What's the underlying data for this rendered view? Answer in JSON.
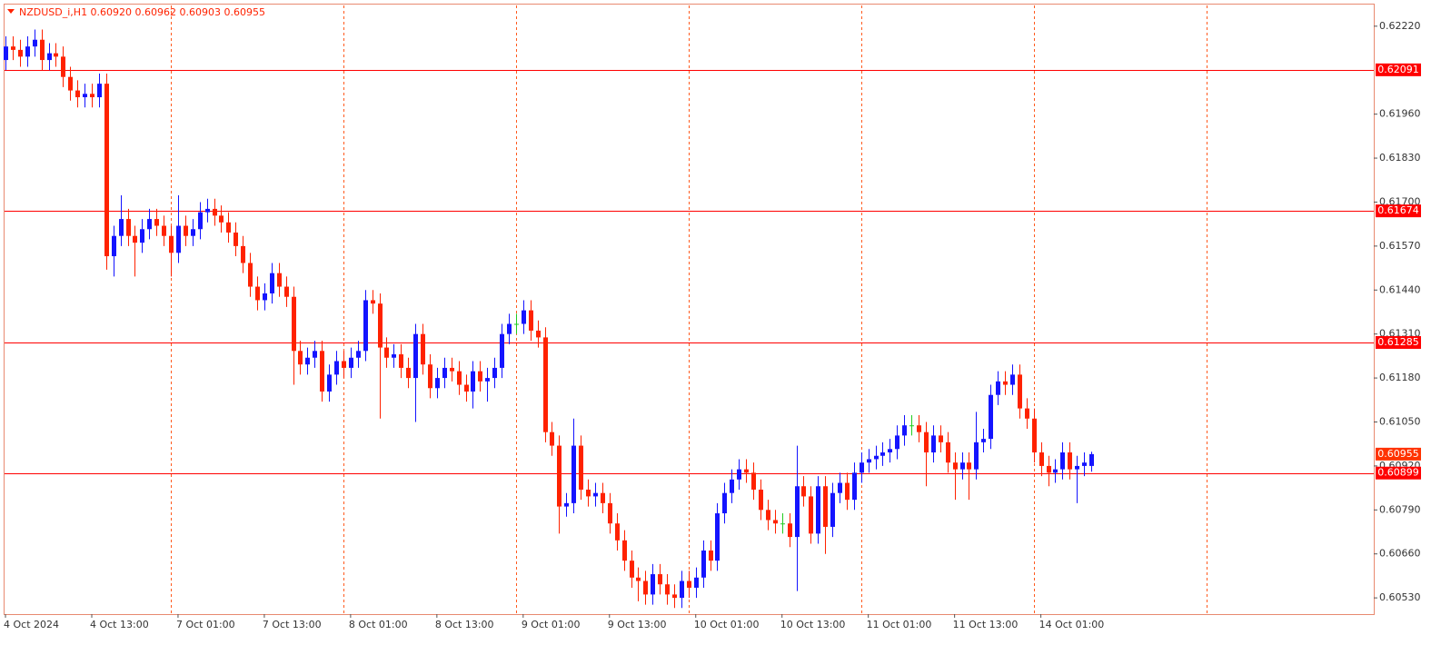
{
  "chart_data": {
    "type": "candlestick",
    "title": "NZDUSD_i,H1  0.60920 0.60962 0.60903 0.60955",
    "categories": [
      "4 Oct 2024",
      null,
      null,
      null,
      null,
      null,
      null,
      null,
      null,
      null,
      null,
      null,
      "4 Oct 13:00",
      null,
      null,
      null,
      null,
      null,
      null,
      null,
      null,
      null,
      null,
      null,
      "7 Oct 01:00",
      null,
      null,
      null,
      null,
      null,
      null,
      null,
      null,
      null,
      null,
      null,
      "7 Oct 13:00",
      null,
      null,
      null,
      null,
      null,
      null,
      null,
      null,
      null,
      null,
      null,
      "8 Oct 01:00",
      null,
      null,
      null,
      null,
      null,
      null,
      null,
      null,
      null,
      null,
      null,
      "8 Oct 13:00",
      null,
      null,
      null,
      null,
      null,
      null,
      null,
      null,
      null,
      null,
      null,
      "9 Oct 01:00",
      null,
      null,
      null,
      null,
      null,
      null,
      null,
      null,
      null,
      null,
      null,
      "9 Oct 13:00",
      null,
      null,
      null,
      null,
      null,
      null,
      null,
      null,
      null,
      null,
      null,
      "10 Oct 01:00",
      null,
      null,
      null,
      null,
      null,
      null,
      null,
      null,
      null,
      null,
      null,
      "10 Oct 13:00",
      null,
      null,
      null,
      null,
      null,
      null,
      null,
      null,
      null,
      null,
      null,
      "11 Oct 01:00",
      null,
      null,
      null,
      null,
      null,
      null,
      null,
      null,
      null,
      null,
      null,
      "11 Oct 13:00",
      null,
      null,
      null,
      null,
      null,
      null,
      null,
      null,
      null,
      null,
      null,
      "14 Oct 01:00",
      null,
      null,
      null,
      null,
      null,
      null,
      null
    ],
    "open": [
      0.6212,
      0.6216,
      0.6215,
      0.6213,
      0.6216,
      0.6218,
      0.6212,
      0.6214,
      0.6213,
      0.6207,
      0.6203,
      0.6201,
      0.6202,
      0.6201,
      0.6205,
      0.6154,
      0.616,
      0.6165,
      0.616,
      0.6158,
      0.6162,
      0.6165,
      0.6163,
      0.616,
      0.6155,
      0.6163,
      0.616,
      0.6162,
      0.6167,
      0.6168,
      0.6166,
      0.6164,
      0.6161,
      0.6157,
      0.6152,
      0.6145,
      0.6141,
      0.6143,
      0.6149,
      0.6145,
      0.6142,
      0.6126,
      0.6122,
      0.6124,
      0.6126,
      0.6114,
      0.6119,
      0.6123,
      0.6121,
      0.6124,
      0.6126,
      0.6141,
      0.614,
      0.6127,
      0.6124,
      0.6125,
      0.6121,
      0.6118,
      0.6131,
      0.6122,
      0.6115,
      0.6118,
      0.6121,
      0.612,
      0.6116,
      0.6114,
      0.612,
      0.6117,
      0.6118,
      0.6121,
      0.6131,
      0.6134,
      0.6134,
      0.6138,
      0.6132,
      0.613,
      0.6102,
      0.6098,
      0.608,
      0.6081,
      0.6098,
      0.6085,
      0.6083,
      0.6084,
      0.6081,
      0.6075,
      0.607,
      0.6064,
      0.6059,
      0.6058,
      0.6054,
      0.606,
      0.6057,
      0.6054,
      0.6053,
      0.6058,
      0.6056,
      0.6059,
      0.6067,
      0.6064,
      0.6078,
      0.6084,
      0.6088,
      0.6091,
      0.609,
      0.6085,
      0.6079,
      0.6076,
      0.6075,
      0.6075,
      0.6071,
      0.6086,
      0.6083,
      0.6072,
      0.6086,
      0.6074,
      0.6084,
      0.6087,
      0.6082,
      0.609,
      0.6093,
      0.6094,
      0.6095,
      0.6096,
      0.6097,
      0.6101,
      0.6104,
      0.6104,
      0.6102,
      0.6096,
      0.6101,
      0.6099,
      0.6093,
      0.6091,
      0.6093,
      0.6091,
      0.6099,
      0.61,
      0.6113,
      0.6117,
      0.6116,
      0.6119,
      0.6109,
      0.6106,
      0.6096,
      0.6092,
      0.609,
      0.6091,
      0.6096,
      0.6091,
      0.6092,
      0.6092
    ],
    "high": [
      0.6219,
      0.6219,
      0.6218,
      0.6219,
      0.6221,
      0.6221,
      0.6217,
      0.6217,
      0.6216,
      0.621,
      0.6206,
      0.6205,
      0.6205,
      0.6208,
      0.6208,
      0.6163,
      0.6172,
      0.6168,
      0.6163,
      0.6165,
      0.6168,
      0.6168,
      0.6166,
      0.6163,
      0.6172,
      0.6166,
      0.6165,
      0.617,
      0.6171,
      0.6171,
      0.6169,
      0.6167,
      0.6164,
      0.616,
      0.6155,
      0.6148,
      0.6146,
      0.6152,
      0.6152,
      0.6148,
      0.6145,
      0.6129,
      0.6127,
      0.6129,
      0.6129,
      0.6122,
      0.6126,
      0.6126,
      0.6127,
      0.6129,
      0.6144,
      0.6144,
      0.6143,
      0.613,
      0.6128,
      0.6128,
      0.6124,
      0.6134,
      0.6134,
      0.6125,
      0.6121,
      0.6124,
      0.6124,
      0.6123,
      0.6119,
      0.6123,
      0.6123,
      0.6121,
      0.6124,
      0.6134,
      0.6137,
      0.6137,
      0.6141,
      0.6141,
      0.6135,
      0.6133,
      0.6105,
      0.6101,
      0.6084,
      0.6106,
      0.6101,
      0.6088,
      0.6087,
      0.6087,
      0.6084,
      0.6078,
      0.6073,
      0.6067,
      0.6062,
      0.6061,
      0.6063,
      0.6063,
      0.606,
      0.6057,
      0.6061,
      0.6061,
      0.6062,
      0.607,
      0.607,
      0.6081,
      0.6087,
      0.6091,
      0.6094,
      0.6094,
      0.6093,
      0.6088,
      0.6082,
      0.6079,
      0.6078,
      0.6078,
      0.6098,
      0.6089,
      0.6086,
      0.6089,
      0.6089,
      0.6087,
      0.609,
      0.609,
      0.6093,
      0.6096,
      0.6097,
      0.6098,
      0.6099,
      0.61,
      0.6104,
      0.6107,
      0.6107,
      0.6107,
      0.6105,
      0.6104,
      0.6104,
      0.6102,
      0.6096,
      0.6096,
      0.6096,
      0.6108,
      0.6103,
      0.6116,
      0.612,
      0.612,
      0.6122,
      0.6122,
      0.6112,
      0.6109,
      0.6099,
      0.6095,
      0.6094,
      0.6099,
      0.6099,
      0.6095,
      0.6096,
      0.60962
    ],
    "low": [
      0.6209,
      0.6212,
      0.621,
      0.621,
      0.6213,
      0.6209,
      0.6209,
      0.621,
      0.6204,
      0.62,
      0.6198,
      0.6198,
      0.6198,
      0.6198,
      0.615,
      0.6148,
      0.6157,
      0.6157,
      0.6148,
      0.6155,
      0.6159,
      0.616,
      0.6157,
      0.6148,
      0.6152,
      0.6157,
      0.6157,
      0.6159,
      0.6164,
      0.6163,
      0.6161,
      0.6158,
      0.6154,
      0.6149,
      0.6142,
      0.6138,
      0.6138,
      0.614,
      0.6142,
      0.6139,
      0.6116,
      0.6119,
      0.6119,
      0.6121,
      0.6111,
      0.6111,
      0.6116,
      0.6118,
      0.6118,
      0.6121,
      0.6123,
      0.6137,
      0.6106,
      0.6121,
      0.6121,
      0.6118,
      0.6115,
      0.6105,
      0.6119,
      0.6112,
      0.6112,
      0.6115,
      0.6117,
      0.6113,
      0.6111,
      0.6109,
      0.6114,
      0.6111,
      0.6115,
      0.6118,
      0.6128,
      0.6131,
      0.6131,
      0.6129,
      0.6127,
      0.6099,
      0.6095,
      0.6072,
      0.6077,
      0.6078,
      0.6082,
      0.608,
      0.608,
      0.6078,
      0.6072,
      0.6067,
      0.6061,
      0.6056,
      0.6052,
      0.6051,
      0.6051,
      0.6054,
      0.6051,
      0.605,
      0.605,
      0.6053,
      0.6053,
      0.6056,
      0.6061,
      0.6061,
      0.6075,
      0.6081,
      0.6085,
      0.6087,
      0.6082,
      0.6076,
      0.6073,
      0.6072,
      0.6072,
      0.6068,
      0.6055,
      0.608,
      0.6069,
      0.6069,
      0.6066,
      0.6071,
      0.6081,
      0.6079,
      0.6079,
      0.6087,
      0.609,
      0.6091,
      0.6092,
      0.6093,
      0.6094,
      0.6098,
      0.6101,
      0.6099,
      0.6086,
      0.6093,
      0.6096,
      0.609,
      0.6082,
      0.6088,
      0.6082,
      0.6088,
      0.6096,
      0.6097,
      0.611,
      0.6113,
      0.6113,
      0.6106,
      0.6103,
      0.6093,
      0.6089,
      0.6086,
      0.6087,
      0.6088,
      0.6088,
      0.6081,
      0.6089,
      0.60903
    ],
    "close": [
      0.6216,
      0.6215,
      0.6213,
      0.6216,
      0.6218,
      0.6212,
      0.6214,
      0.6213,
      0.6207,
      0.6203,
      0.6201,
      0.6202,
      0.6201,
      0.6205,
      0.6154,
      0.616,
      0.6165,
      0.616,
      0.6158,
      0.6162,
      0.6165,
      0.6163,
      0.616,
      0.6155,
      0.6163,
      0.616,
      0.6162,
      0.6167,
      0.6168,
      0.6166,
      0.6164,
      0.6161,
      0.6157,
      0.6152,
      0.6145,
      0.6141,
      0.6143,
      0.6149,
      0.6145,
      0.6142,
      0.6126,
      0.6122,
      0.6124,
      0.6126,
      0.6114,
      0.6119,
      0.6123,
      0.6121,
      0.6124,
      0.6126,
      0.6141,
      0.614,
      0.6127,
      0.6124,
      0.6125,
      0.6121,
      0.6118,
      0.6131,
      0.6122,
      0.6115,
      0.6118,
      0.6121,
      0.612,
      0.6116,
      0.6114,
      0.612,
      0.6117,
      0.6118,
      0.6121,
      0.6131,
      0.6134,
      0.6134,
      0.6138,
      0.6132,
      0.613,
      0.6102,
      0.6098,
      0.608,
      0.6081,
      0.6098,
      0.6085,
      0.6083,
      0.6084,
      0.6081,
      0.6075,
      0.607,
      0.6064,
      0.6059,
      0.6058,
      0.6054,
      0.606,
      0.6057,
      0.6054,
      0.6053,
      0.6058,
      0.6056,
      0.6059,
      0.6067,
      0.6064,
      0.6078,
      0.6084,
      0.6088,
      0.6091,
      0.609,
      0.6085,
      0.6079,
      0.6076,
      0.6075,
      0.6075,
      0.6071,
      0.6086,
      0.6083,
      0.6072,
      0.6086,
      0.6074,
      0.6084,
      0.6087,
      0.6082,
      0.609,
      0.6093,
      0.6094,
      0.6095,
      0.6096,
      0.6097,
      0.6101,
      0.6104,
      0.6104,
      0.6102,
      0.6096,
      0.6101,
      0.6099,
      0.6093,
      0.6091,
      0.6093,
      0.6091,
      0.6099,
      0.61,
      0.6113,
      0.6117,
      0.6116,
      0.6119,
      0.6109,
      0.6106,
      0.6096,
      0.6092,
      0.609,
      0.6091,
      0.6096,
      0.6091,
      0.6092,
      0.6093,
      0.60955
    ],
    "up_color": "#1414ff",
    "down_color": "#ff2200",
    "flat_color": "#22cc22",
    "xlim": [
      -0.13,
      190.3
    ],
    "ylim": [
      0.60482,
      0.62284
    ],
    "yticks": [
      {
        "value": 0.6222,
        "label": "0.62220"
      },
      {
        "value": 0.6196,
        "label": "0.61960"
      },
      {
        "value": 0.6183,
        "label": "0.61830"
      },
      {
        "value": 0.617,
        "label": "0.61700"
      },
      {
        "value": 0.6157,
        "label": "0.61570"
      },
      {
        "value": 0.6144,
        "label": "0.61440"
      },
      {
        "value": 0.6131,
        "label": "0.61310"
      },
      {
        "value": 0.6118,
        "label": "0.61180"
      },
      {
        "value": 0.6105,
        "label": "0.61050"
      },
      {
        "value": 0.6092,
        "label": "0.60920"
      },
      {
        "value": 0.6079,
        "label": "0.60790"
      },
      {
        "value": 0.6066,
        "label": "0.60660"
      },
      {
        "value": 0.6053,
        "label": "0.60530"
      }
    ],
    "levels": [
      {
        "value": 0.62091,
        "label": "0.62091"
      },
      {
        "value": 0.61674,
        "label": "0.61674"
      },
      {
        "value": 0.61285,
        "label": "0.61285"
      },
      {
        "value": 0.60899,
        "label": "0.60899"
      }
    ],
    "level_color": "#ff0000",
    "current_price": {
      "value": 0.60955,
      "label": "0.60955"
    },
    "current_price_color": "#ff3300",
    "period_separators": [
      23,
      47,
      71,
      95,
      119,
      143,
      167
    ],
    "separator_color": "#ff5a1e"
  }
}
